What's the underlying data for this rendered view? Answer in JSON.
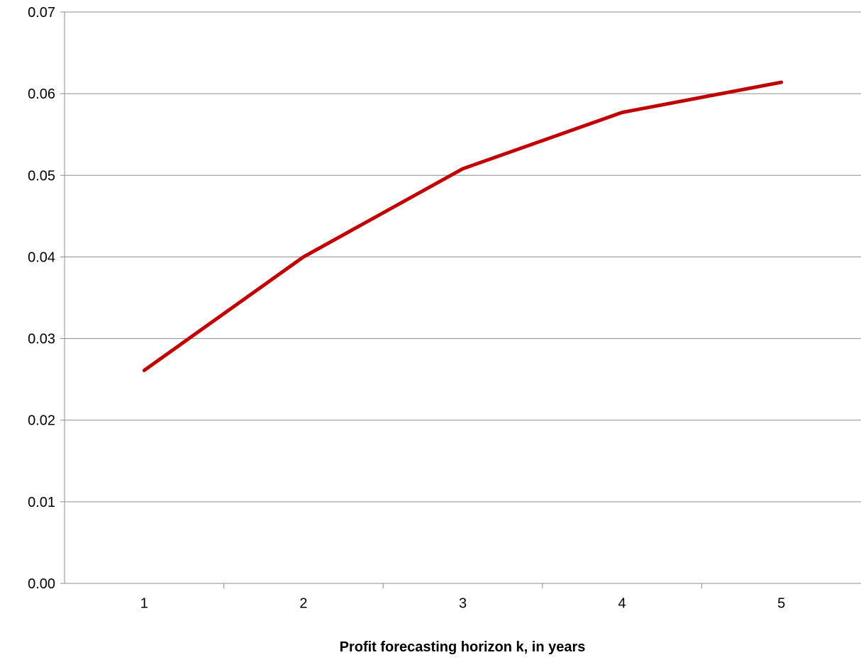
{
  "chart_data": {
    "type": "line",
    "title": "",
    "xlabel": "Profit forecasting horizon k, in years",
    "ylabel": "",
    "categories": [
      "1",
      "2",
      "3",
      "4",
      "5"
    ],
    "series": [
      {
        "values": [
          0.0261,
          0.04,
          0.0508,
          0.0577,
          0.0614
        ],
        "color": "#C00000"
      }
    ],
    "ylim": [
      0.0,
      0.07
    ],
    "yticks": [
      "0.00",
      "0.01",
      "0.02",
      "0.03",
      "0.04",
      "0.05",
      "0.06",
      "0.07"
    ],
    "grid": "horizontal",
    "legend": "none"
  }
}
